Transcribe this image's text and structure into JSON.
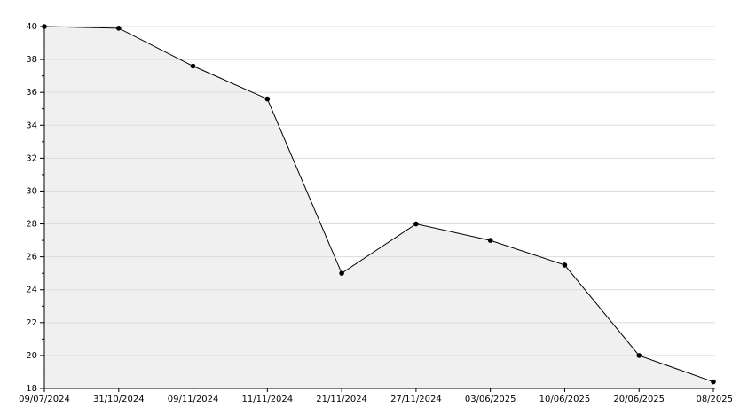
{
  "chart_data": {
    "type": "area",
    "categories": [
      "09/07/2024",
      "31/10/2024",
      "09/11/2024",
      "11/11/2024",
      "21/11/2024",
      "27/11/2024",
      "03/06/2025",
      "10/06/2025",
      "20/06/2025",
      "08/2025"
    ],
    "values": [
      40,
      39.9,
      37.6,
      35.6,
      25,
      28,
      27,
      25.5,
      20,
      18.4
    ],
    "color": "#000000",
    "fill": "#f0f0f0",
    "ylim": [
      18,
      40
    ],
    "yticks": [
      18,
      20,
      22,
      24,
      26,
      28,
      30,
      32,
      34,
      36,
      38,
      40
    ],
    "grid": true
  }
}
